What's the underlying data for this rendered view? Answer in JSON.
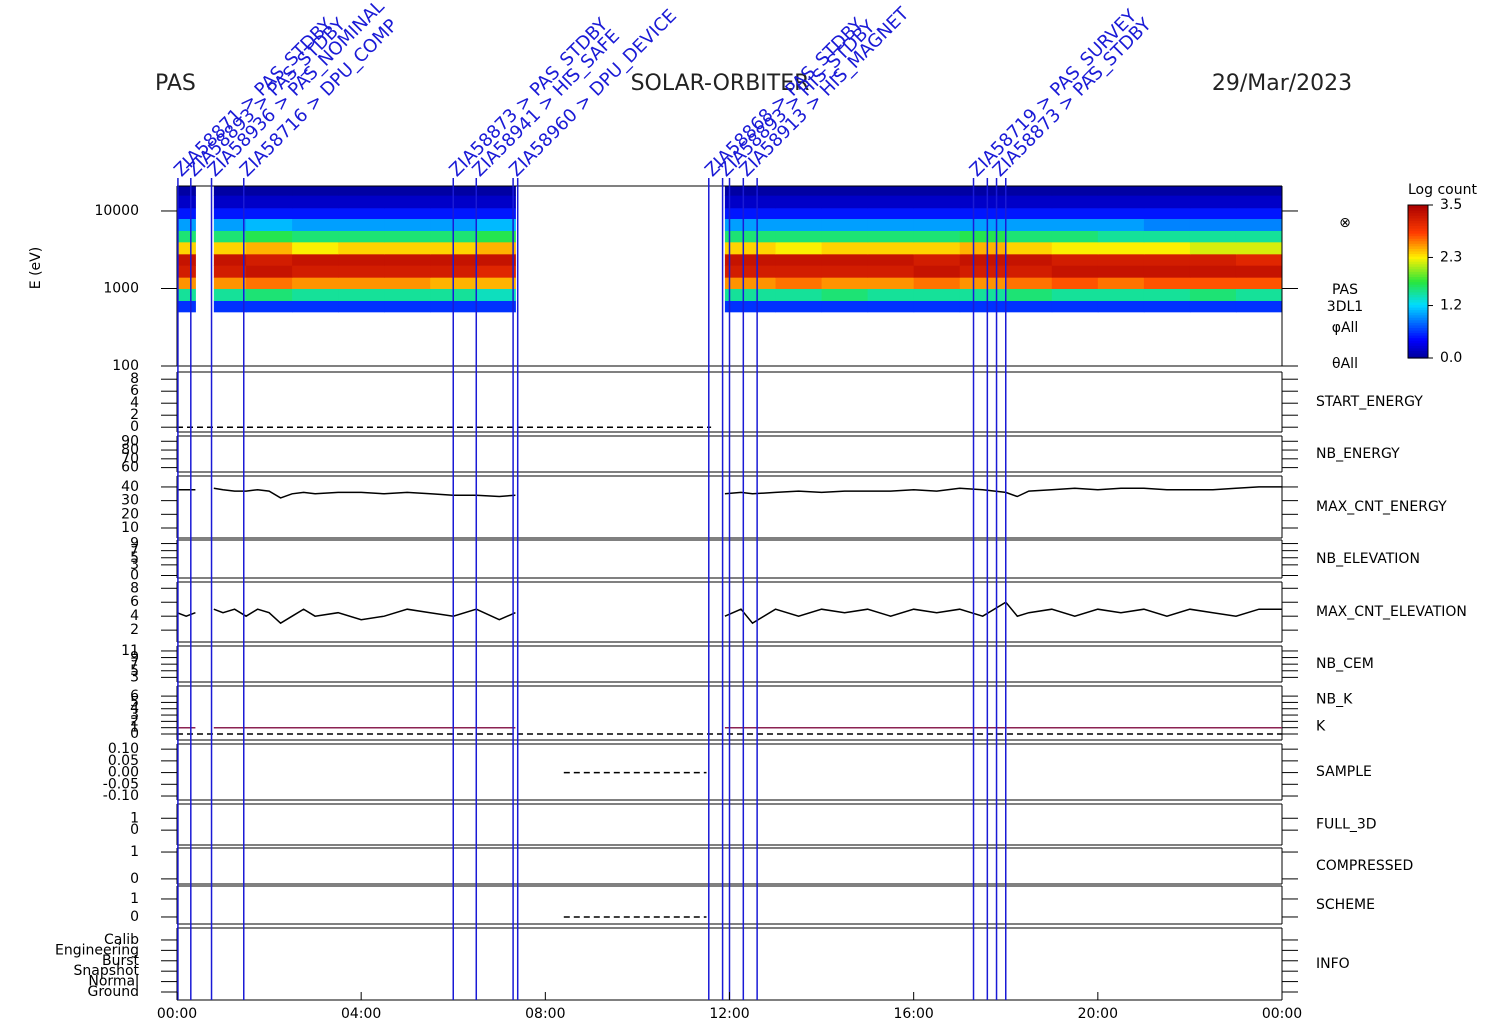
{
  "header": {
    "left": "PAS",
    "center": "SOLAR-ORBITER",
    "right": "29/Mar/2023"
  },
  "time_axis": {
    "xlim": [
      0,
      24
    ],
    "xticks": [
      {
        "value": 0,
        "label": "00:00"
      },
      {
        "value": 4,
        "label": "04:00"
      },
      {
        "value": 8,
        "label": "08:00"
      },
      {
        "value": 12,
        "label": "12:00"
      },
      {
        "value": 16,
        "label": "16:00"
      },
      {
        "value": 20,
        "label": "20:00"
      },
      {
        "value": 24,
        "label": "00:00"
      }
    ]
  },
  "events": [
    {
      "x": 0.02,
      "label": "ZIA58871 > PAS_STDBY"
    },
    {
      "x": 0.3,
      "label": "ZIA58893 > PAS_STDBY"
    },
    {
      "x": 0.75,
      "label": "ZIA58936 > PAS_NOMINAL"
    },
    {
      "x": 1.45,
      "label": "ZIA58716 > DPU_COMP"
    },
    {
      "x": 6.0,
      "label": "ZIA58873 > PAS_STDBY"
    },
    {
      "x": 6.5,
      "label": "ZIA58941 > HIS_SAFE"
    },
    {
      "x": 7.3,
      "label": "ZIA58960 > DPU_DEVICE"
    },
    {
      "x": 7.4,
      "label": null
    },
    {
      "x": 11.55,
      "label": "ZIA58868 > PAS_STDBY"
    },
    {
      "x": 11.85,
      "label": "ZIA58893 > HIS_STDBY"
    },
    {
      "x": 12.0,
      "label": null
    },
    {
      "x": 12.3,
      "label": "ZIA58913 > HIS_MAGNET"
    },
    {
      "x": 12.6,
      "label": null
    },
    {
      "x": 17.3,
      "label": "ZIA58719 > PAS_SURVEY"
    },
    {
      "x": 17.6,
      "label": null
    },
    {
      "x": 17.8,
      "label": "ZIA58873 > PAS_STDBY"
    },
    {
      "x": 18.0,
      "label": null
    }
  ],
  "chart_data": [
    {
      "type": "heatmap",
      "ylabel": "E (eV)",
      "log_y": true,
      "ylim": [
        100,
        21000
      ],
      "yticks": [
        100,
        1000,
        10000
      ],
      "x_edges": [
        0,
        0.4,
        0.8,
        1.5,
        2.5,
        3.5,
        4.5,
        5.5,
        6.5,
        7.35,
        11.9,
        13,
        14,
        15,
        16,
        17,
        18,
        19,
        20,
        21,
        22,
        23,
        24
      ],
      "y_edges": [
        500,
        700,
        1000,
        1400,
        2000,
        2800,
        4000,
        5600,
        8000,
        11000,
        16000,
        21000
      ],
      "values": [
        [
          0.6,
          null,
          0.6,
          0.6,
          0.6,
          0.6,
          0.6,
          0.6,
          0.6,
          null,
          0.6,
          0.6,
          0.6,
          0.6,
          0.6,
          0.6,
          0.6,
          0.6,
          0.6,
          0.6,
          0.6,
          0.6
        ],
        [
          1.5,
          null,
          1.5,
          1.6,
          1.5,
          1.5,
          1.5,
          1.5,
          1.4,
          null,
          1.5,
          1.5,
          1.6,
          1.5,
          1.5,
          1.5,
          1.6,
          1.5,
          1.5,
          1.5,
          1.6,
          1.5
        ],
        [
          2.6,
          null,
          2.6,
          2.7,
          2.6,
          2.6,
          2.6,
          2.5,
          2.5,
          null,
          2.6,
          2.7,
          2.6,
          2.6,
          2.7,
          2.6,
          2.7,
          2.8,
          2.7,
          2.8,
          2.8,
          2.8
        ],
        [
          3.2,
          null,
          3.2,
          3.3,
          3.2,
          3.2,
          3.2,
          3.2,
          3.1,
          null,
          3.2,
          3.2,
          3.2,
          3.2,
          3.3,
          3.2,
          3.2,
          3.3,
          3.3,
          3.3,
          3.3,
          3.3
        ],
        [
          3.3,
          null,
          3.3,
          3.2,
          3.3,
          3.3,
          3.3,
          3.3,
          3.3,
          null,
          3.3,
          3.3,
          3.3,
          3.3,
          3.2,
          3.3,
          3.3,
          3.2,
          3.2,
          3.2,
          3.2,
          3.1
        ],
        [
          2.4,
          null,
          2.4,
          2.5,
          2.3,
          2.4,
          2.4,
          2.4,
          2.5,
          null,
          2.4,
          2.3,
          2.4,
          2.4,
          2.4,
          2.5,
          2.4,
          2.3,
          2.3,
          2.3,
          2.2,
          2.2
        ],
        [
          1.6,
          null,
          1.6,
          1.7,
          1.6,
          1.6,
          1.6,
          1.6,
          1.7,
          null,
          1.6,
          1.6,
          1.6,
          1.6,
          1.6,
          1.7,
          1.6,
          1.6,
          1.5,
          1.5,
          1.5,
          1.5
        ],
        [
          1.0,
          null,
          1.0,
          1.1,
          1.0,
          1.0,
          1.0,
          1.0,
          1.1,
          null,
          1.0,
          1.0,
          1.0,
          1.0,
          1.0,
          1.0,
          1.0,
          1.0,
          1.0,
          0.9,
          0.9,
          0.9
        ],
        [
          0.5,
          null,
          0.5,
          0.5,
          0.5,
          0.5,
          0.5,
          0.5,
          0.5,
          null,
          0.5,
          0.5,
          0.5,
          0.5,
          0.5,
          0.5,
          0.5,
          0.5,
          0.5,
          0.5,
          0.5,
          0.5
        ],
        [
          0.2,
          null,
          0.2,
          0.2,
          0.2,
          0.2,
          0.2,
          0.2,
          0.2,
          null,
          0.2,
          0.2,
          0.2,
          0.2,
          0.2,
          0.2,
          0.2,
          0.2,
          0.2,
          0.2,
          0.2,
          0.2
        ],
        [
          0.05,
          null,
          0.05,
          0.05,
          0.05,
          0.05,
          0.05,
          0.05,
          0.05,
          null,
          0.05,
          0.05,
          0.05,
          0.05,
          0.05,
          0.05,
          0.05,
          0.05,
          0.05,
          0.05,
          0.05,
          0.05
        ]
      ],
      "colorbar": {
        "title": "Log count",
        "lim": [
          0,
          3.5
        ],
        "ticks": [
          {
            "value": 0,
            "label": "0.0"
          },
          1.2,
          2.3,
          3.5
        ]
      },
      "side_labels": [
        "⊗",
        "PAS",
        "3DL1",
        "φAll",
        "θAll"
      ]
    },
    {
      "type": "line",
      "labels": [
        {
          "text": "START_ENERGY",
          "color": "#000000"
        }
      ],
      "ylim": [
        -0.8,
        9.2
      ],
      "yticks": [
        0,
        2,
        4,
        6,
        8
      ],
      "series": [
        {
          "color": "#000000",
          "dash": true,
          "x": [
            0,
            11.6
          ],
          "values": [
            0,
            0
          ]
        }
      ]
    },
    {
      "type": "line",
      "labels": [
        {
          "text": "NB_ENERGY",
          "color": "#2020c0"
        }
      ],
      "ylim": [
        55,
        96
      ],
      "yticks": [
        60,
        70,
        80,
        90
      ],
      "series": []
    },
    {
      "type": "line",
      "labels": [
        {
          "text": "MAX_CNT_ENERGY",
          "color": "#000000"
        }
      ],
      "ylim": [
        2.7,
        48
      ],
      "yticks": [
        10,
        20,
        30,
        40
      ],
      "series": [
        {
          "color": "#000000",
          "x": [
            0,
            0.2,
            0.4,
            0.6,
            0.8,
            1.0,
            1.25,
            1.5,
            1.75,
            2.0,
            2.25,
            2.5,
            2.75,
            3,
            3.5,
            4,
            4.5,
            5,
            5.5,
            6,
            6.5,
            7,
            7.35,
            9.5,
            11.9,
            12.25,
            12.5,
            13,
            13.5,
            14,
            14.5,
            15,
            15.5,
            16,
            16.5,
            17,
            17.5,
            18,
            18.25,
            18.5,
            19,
            19.5,
            20,
            20.5,
            21,
            21.5,
            22,
            22.5,
            23,
            23.5,
            24
          ],
          "values": [
            38,
            38,
            38,
            null,
            39,
            38,
            37,
            37,
            38,
            37,
            32,
            35,
            36,
            35,
            36,
            36,
            35,
            36,
            35,
            34,
            34,
            33,
            34,
            null,
            35,
            36,
            35,
            36,
            37,
            36,
            37,
            37,
            37,
            38,
            37,
            39,
            38,
            36,
            33,
            37,
            38,
            39,
            38,
            39,
            39,
            38,
            38,
            38,
            39,
            40,
            40
          ]
        }
      ]
    },
    {
      "type": "line",
      "labels": [
        {
          "text": "NB_ELEVATION",
          "color": "#2020c0"
        }
      ],
      "ylim": [
        -0.7,
        10
      ],
      "yticks": [
        0,
        3,
        5,
        7,
        9
      ],
      "series": []
    },
    {
      "type": "line",
      "labels": [
        {
          "text": "MAX_CNT_ELEVATION",
          "color": "#000000"
        }
      ],
      "ylim": [
        0.3,
        8.9
      ],
      "yticks": [
        2,
        4,
        6,
        8
      ],
      "series": [
        {
          "color": "#000000",
          "x": [
            0,
            0.2,
            0.4,
            0.6,
            0.8,
            1.0,
            1.25,
            1.5,
            1.75,
            2.0,
            2.25,
            2.5,
            2.75,
            3,
            3.5,
            4,
            4.5,
            5,
            5.5,
            6,
            6.5,
            7,
            7.35,
            9.5,
            11.9,
            12.25,
            12.5,
            13,
            13.5,
            14,
            14.5,
            15,
            15.5,
            16,
            16.5,
            17,
            17.5,
            18,
            18.25,
            18.5,
            19,
            19.5,
            20,
            20.5,
            21,
            21.5,
            22,
            22.5,
            23,
            23.5,
            24
          ],
          "values": [
            4.5,
            4,
            4.5,
            null,
            5,
            4.5,
            5,
            4,
            5,
            4.5,
            3,
            4,
            5,
            4,
            4.5,
            3.5,
            4,
            5,
            4.5,
            4,
            5,
            3.5,
            4.5,
            null,
            4,
            5,
            3,
            5,
            4,
            5,
            4.5,
            5,
            4,
            5,
            4.5,
            5,
            4,
            6,
            4,
            4.5,
            5,
            4,
            5,
            4.5,
            5,
            4,
            5,
            4.5,
            4,
            5,
            5
          ]
        }
      ]
    },
    {
      "type": "line",
      "labels": [
        {
          "text": "NB_CEM",
          "color": "#2020c0"
        }
      ],
      "ylim": [
        1.6,
        12.5
      ],
      "yticks": [
        3,
        5,
        7,
        9,
        11
      ],
      "series": []
    },
    {
      "type": "line",
      "labels": [
        {
          "text": "NB_K",
          "color": "#d62020"
        },
        {
          "text": "K",
          "color": "#2020c0"
        }
      ],
      "ylim": [
        -0.95,
        7.6
      ],
      "yticks": [
        0,
        1,
        2,
        3,
        4,
        5,
        6
      ],
      "series": [
        {
          "color": "#8b2252",
          "x": [
            0,
            0.4,
            0.6,
            0.8,
            7.35,
            9.5,
            11.9,
            24
          ],
          "values": [
            1,
            1,
            null,
            1,
            1,
            null,
            1,
            1
          ]
        },
        {
          "color": "#000000",
          "dash": true,
          "x": [
            0,
            24
          ],
          "values": [
            0,
            0
          ]
        }
      ]
    },
    {
      "type": "line",
      "labels": [
        {
          "text": "SAMPLE",
          "color": "#2020c0"
        }
      ],
      "ylim": [
        -0.117,
        0.122
      ],
      "yticks": [
        {
          "value": -0.1,
          "label": "-0.10"
        },
        {
          "value": -0.05,
          "label": "-0.05"
        },
        {
          "value": 0,
          "label": "0.00"
        },
        {
          "value": 0.05,
          "label": "0.05"
        },
        {
          "value": 0.1,
          "label": "0.10"
        }
      ],
      "series": [
        {
          "color": "#000000",
          "dash": true,
          "x": [
            8.4,
            11.5
          ],
          "values": [
            0,
            0
          ]
        }
      ]
    },
    {
      "type": "line",
      "labels": [
        {
          "text": "FULL_3D",
          "color": "#2020c0"
        }
      ],
      "ylim": [
        -1.25,
        2.2
      ],
      "yticks": [
        0,
        1
      ],
      "series": []
    },
    {
      "type": "line",
      "labels": [
        {
          "text": "COMPRESSED",
          "color": "#000000"
        }
      ],
      "ylim": [
        -0.19,
        1.15
      ],
      "yticks": [
        0,
        1
      ],
      "series": []
    },
    {
      "type": "line",
      "labels": [
        {
          "text": "SCHEME",
          "color": "#000000"
        }
      ],
      "ylim": [
        -0.39,
        1.72
      ],
      "yticks": [
        0,
        1
      ],
      "series": [
        {
          "color": "#000000",
          "dash": true,
          "x": [
            8.4,
            11.5
          ],
          "values": [
            0,
            0
          ]
        }
      ]
    },
    {
      "type": "line",
      "labels": [
        {
          "text": "INFO",
          "color": "#000000"
        }
      ],
      "ylim": [
        -0.77,
        6.15
      ],
      "yticks": [
        {
          "value": 0,
          "label": "Ground"
        },
        {
          "value": 1,
          "label": "Normal"
        },
        {
          "value": 2,
          "label": "Snapshot"
        },
        {
          "value": 3,
          "label": "Burst"
        },
        {
          "value": 4,
          "label": "Engineering"
        },
        {
          "value": 5,
          "label": "Calib"
        }
      ],
      "series": []
    }
  ]
}
